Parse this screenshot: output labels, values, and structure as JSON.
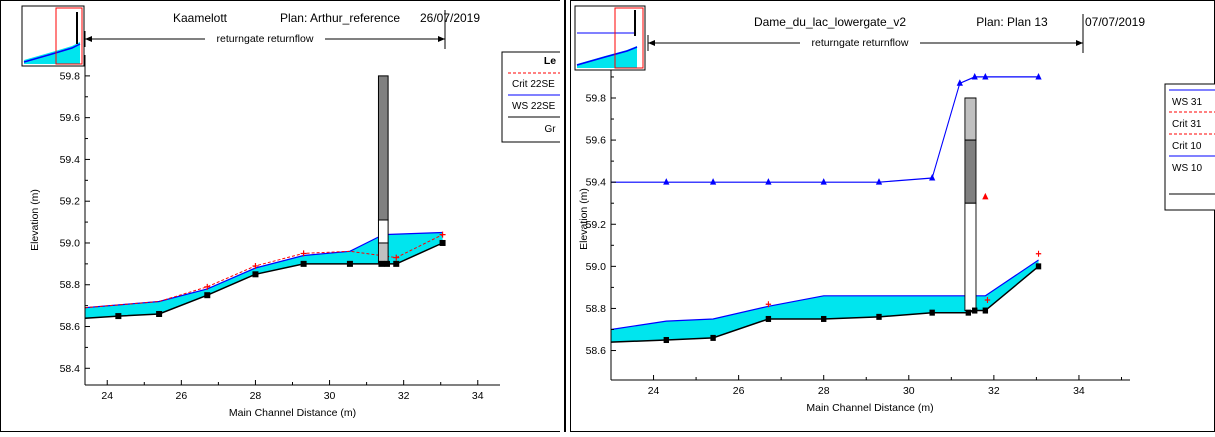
{
  "colors": {
    "water_fill": "#00e5ee",
    "ws_line": "#0000ff",
    "crit_line": "#ff0000",
    "ground": "#000000",
    "gate_dark": "#808080",
    "gate_light": "#c0c0c0"
  },
  "chart_data": [
    {
      "type": "line",
      "title": "Kaamelott",
      "plan_label": "Plan: Arthur_reference",
      "date": "26/07/2019",
      "annotation": "returngate returnflow",
      "xlabel": "Main Channel Distance (m)",
      "ylabel": "Elevation (m)",
      "xlim": [
        23.4,
        34.6
      ],
      "ylim": [
        58.32,
        59.9
      ],
      "xticks": [
        "24",
        "26",
        "28",
        "30",
        "32",
        "34"
      ],
      "yticks": [
        "58.4",
        "58.6",
        "58.8",
        "59.0",
        "59.2",
        "59.4",
        "59.6",
        "59.8"
      ],
      "legend": {
        "title": "Le",
        "entries": [
          "Crit 22SE",
          "WS 22SE",
          "Gr"
        ]
      },
      "ground": {
        "x": [
          23.4,
          24.3,
          25.4,
          26.7,
          28.0,
          29.3,
          30.55,
          31.4,
          31.55,
          31.8,
          33.05
        ],
        "y": [
          58.64,
          58.65,
          58.66,
          58.75,
          58.85,
          58.9,
          58.9,
          58.9,
          58.9,
          58.9,
          59.0
        ]
      },
      "ground_markers_x": [
        24.3,
        25.4,
        26.7,
        28.0,
        29.3,
        30.55,
        31.4,
        31.55,
        31.8,
        33.05
      ],
      "ws": {
        "x": [
          23.4,
          25.4,
          26.7,
          28.0,
          29.3,
          30.55,
          31.45,
          33.05
        ],
        "y": [
          58.69,
          58.72,
          58.78,
          58.88,
          58.94,
          58.96,
          59.04,
          59.05
        ]
      },
      "crit": {
        "x": [
          23.4,
          25.4,
          26.7,
          28.0,
          29.3,
          30.55,
          31.8,
          33.05
        ],
        "y": [
          58.69,
          58.72,
          58.79,
          58.89,
          58.95,
          58.96,
          58.93,
          59.04
        ]
      },
      "crit_markers_x": [
        26.7,
        28.0,
        29.3,
        31.8,
        33.05
      ],
      "gate": {
        "x": 31.45,
        "half_width": 0.13,
        "segments": [
          {
            "y0": 59.11,
            "y1": 59.8,
            "color": "#808080"
          },
          {
            "y0": 59.0,
            "y1": 59.11,
            "color": "#ffffff"
          },
          {
            "y0": 58.9,
            "y1": 59.0,
            "color": "#c0c0c0"
          }
        ]
      }
    },
    {
      "type": "line",
      "title": "Dame_du_lac_lowergate_v2",
      "plan_label": "Plan: Plan 13",
      "date": "07/07/2019",
      "annotation": "returngate returnflow",
      "xlabel": "Main Channel Distance (m)",
      "ylabel": "Elevation (m)",
      "xlim": [
        23.0,
        35.2
      ],
      "ylim": [
        58.46,
        59.99
      ],
      "xticks": [
        "24",
        "26",
        "28",
        "30",
        "32",
        "34"
      ],
      "yticks": [
        "58.6",
        "58.8",
        "59.0",
        "59.2",
        "59.4",
        "59.6",
        "59.8"
      ],
      "legend": {
        "entries": [
          "WS 31",
          "Crit 31",
          "Crit 10",
          "WS 10"
        ]
      },
      "ground": {
        "x": [
          23.0,
          24.3,
          25.4,
          26.7,
          28.0,
          29.3,
          30.55,
          31.4,
          31.55,
          31.8,
          33.05
        ],
        "y": [
          58.64,
          58.65,
          58.66,
          58.75,
          58.75,
          58.76,
          58.78,
          58.78,
          58.79,
          58.79,
          59.0
        ]
      },
      "ground_markers_x": [
        24.3,
        25.4,
        26.7,
        28.0,
        29.3,
        30.55,
        31.4,
        31.55,
        31.8,
        33.05
      ],
      "ws_low": {
        "x": [
          23.0,
          24.3,
          25.4,
          26.7,
          28.0,
          30.55,
          31.8,
          33.05
        ],
        "y": [
          58.7,
          58.74,
          58.75,
          58.81,
          58.86,
          58.86,
          58.86,
          59.03
        ]
      },
      "ws_high": {
        "x": [
          23.0,
          24.3,
          25.4,
          26.7,
          28.0,
          29.3,
          30.55,
          31.2,
          31.55,
          31.8,
          33.05
        ],
        "y": [
          59.4,
          59.4,
          59.4,
          59.4,
          59.4,
          59.4,
          59.42,
          59.87,
          59.9,
          59.9,
          59.9
        ]
      },
      "ws_high_markers_x": [
        24.3,
        25.4,
        26.7,
        28.0,
        29.3,
        30.55,
        31.2,
        31.55,
        31.8,
        33.05
      ],
      "crit_markers": [
        {
          "x": 26.7,
          "y": 58.82
        },
        {
          "x": 31.8,
          "y": 59.33
        },
        {
          "x": 31.85,
          "y": 58.84
        },
        {
          "x": 33.05,
          "y": 59.06
        }
      ],
      "gate": {
        "x": 31.45,
        "half_width": 0.13,
        "segments": [
          {
            "y0": 59.6,
            "y1": 59.8,
            "color": "#c0c0c0"
          },
          {
            "y0": 59.3,
            "y1": 59.6,
            "color": "#808080"
          },
          {
            "y0": 58.79,
            "y1": 59.3,
            "color": "#ffffff"
          }
        ]
      }
    }
  ]
}
